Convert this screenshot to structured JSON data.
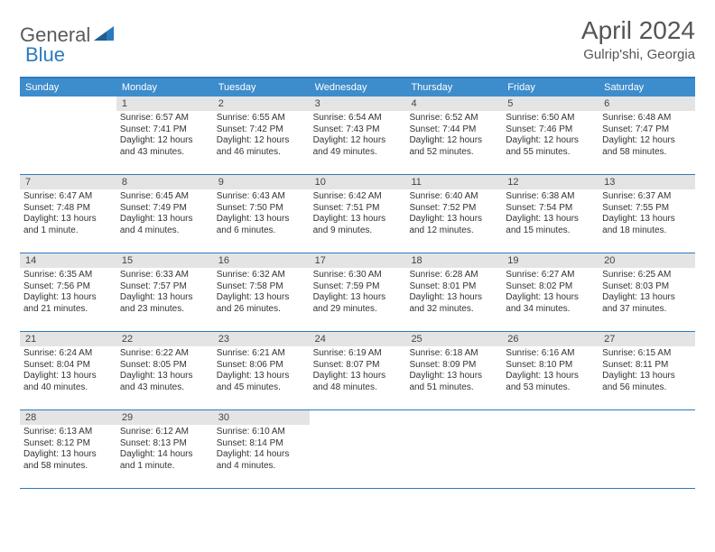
{
  "logo": {
    "gray": "General",
    "blue": "Blue"
  },
  "title": "April 2024",
  "location": "Gulrip'shi, Georgia",
  "colors": {
    "header_bg": "#3d8ccc",
    "header_text": "#ffffff",
    "border": "#2b7bbf",
    "daynum_bg": "#e4e4e4",
    "body_text": "#333333",
    "title_text": "#555555"
  },
  "dayNames": [
    "Sunday",
    "Monday",
    "Tuesday",
    "Wednesday",
    "Thursday",
    "Friday",
    "Saturday"
  ],
  "weeks": [
    [
      {
        "num": "",
        "sunrise": "",
        "sunset": "",
        "daylight": ""
      },
      {
        "num": "1",
        "sunrise": "Sunrise: 6:57 AM",
        "sunset": "Sunset: 7:41 PM",
        "daylight": "Daylight: 12 hours and 43 minutes."
      },
      {
        "num": "2",
        "sunrise": "Sunrise: 6:55 AM",
        "sunset": "Sunset: 7:42 PM",
        "daylight": "Daylight: 12 hours and 46 minutes."
      },
      {
        "num": "3",
        "sunrise": "Sunrise: 6:54 AM",
        "sunset": "Sunset: 7:43 PM",
        "daylight": "Daylight: 12 hours and 49 minutes."
      },
      {
        "num": "4",
        "sunrise": "Sunrise: 6:52 AM",
        "sunset": "Sunset: 7:44 PM",
        "daylight": "Daylight: 12 hours and 52 minutes."
      },
      {
        "num": "5",
        "sunrise": "Sunrise: 6:50 AM",
        "sunset": "Sunset: 7:46 PM",
        "daylight": "Daylight: 12 hours and 55 minutes."
      },
      {
        "num": "6",
        "sunrise": "Sunrise: 6:48 AM",
        "sunset": "Sunset: 7:47 PM",
        "daylight": "Daylight: 12 hours and 58 minutes."
      }
    ],
    [
      {
        "num": "7",
        "sunrise": "Sunrise: 6:47 AM",
        "sunset": "Sunset: 7:48 PM",
        "daylight": "Daylight: 13 hours and 1 minute."
      },
      {
        "num": "8",
        "sunrise": "Sunrise: 6:45 AM",
        "sunset": "Sunset: 7:49 PM",
        "daylight": "Daylight: 13 hours and 4 minutes."
      },
      {
        "num": "9",
        "sunrise": "Sunrise: 6:43 AM",
        "sunset": "Sunset: 7:50 PM",
        "daylight": "Daylight: 13 hours and 6 minutes."
      },
      {
        "num": "10",
        "sunrise": "Sunrise: 6:42 AM",
        "sunset": "Sunset: 7:51 PM",
        "daylight": "Daylight: 13 hours and 9 minutes."
      },
      {
        "num": "11",
        "sunrise": "Sunrise: 6:40 AM",
        "sunset": "Sunset: 7:52 PM",
        "daylight": "Daylight: 13 hours and 12 minutes."
      },
      {
        "num": "12",
        "sunrise": "Sunrise: 6:38 AM",
        "sunset": "Sunset: 7:54 PM",
        "daylight": "Daylight: 13 hours and 15 minutes."
      },
      {
        "num": "13",
        "sunrise": "Sunrise: 6:37 AM",
        "sunset": "Sunset: 7:55 PM",
        "daylight": "Daylight: 13 hours and 18 minutes."
      }
    ],
    [
      {
        "num": "14",
        "sunrise": "Sunrise: 6:35 AM",
        "sunset": "Sunset: 7:56 PM",
        "daylight": "Daylight: 13 hours and 21 minutes."
      },
      {
        "num": "15",
        "sunrise": "Sunrise: 6:33 AM",
        "sunset": "Sunset: 7:57 PM",
        "daylight": "Daylight: 13 hours and 23 minutes."
      },
      {
        "num": "16",
        "sunrise": "Sunrise: 6:32 AM",
        "sunset": "Sunset: 7:58 PM",
        "daylight": "Daylight: 13 hours and 26 minutes."
      },
      {
        "num": "17",
        "sunrise": "Sunrise: 6:30 AM",
        "sunset": "Sunset: 7:59 PM",
        "daylight": "Daylight: 13 hours and 29 minutes."
      },
      {
        "num": "18",
        "sunrise": "Sunrise: 6:28 AM",
        "sunset": "Sunset: 8:01 PM",
        "daylight": "Daylight: 13 hours and 32 minutes."
      },
      {
        "num": "19",
        "sunrise": "Sunrise: 6:27 AM",
        "sunset": "Sunset: 8:02 PM",
        "daylight": "Daylight: 13 hours and 34 minutes."
      },
      {
        "num": "20",
        "sunrise": "Sunrise: 6:25 AM",
        "sunset": "Sunset: 8:03 PM",
        "daylight": "Daylight: 13 hours and 37 minutes."
      }
    ],
    [
      {
        "num": "21",
        "sunrise": "Sunrise: 6:24 AM",
        "sunset": "Sunset: 8:04 PM",
        "daylight": "Daylight: 13 hours and 40 minutes."
      },
      {
        "num": "22",
        "sunrise": "Sunrise: 6:22 AM",
        "sunset": "Sunset: 8:05 PM",
        "daylight": "Daylight: 13 hours and 43 minutes."
      },
      {
        "num": "23",
        "sunrise": "Sunrise: 6:21 AM",
        "sunset": "Sunset: 8:06 PM",
        "daylight": "Daylight: 13 hours and 45 minutes."
      },
      {
        "num": "24",
        "sunrise": "Sunrise: 6:19 AM",
        "sunset": "Sunset: 8:07 PM",
        "daylight": "Daylight: 13 hours and 48 minutes."
      },
      {
        "num": "25",
        "sunrise": "Sunrise: 6:18 AM",
        "sunset": "Sunset: 8:09 PM",
        "daylight": "Daylight: 13 hours and 51 minutes."
      },
      {
        "num": "26",
        "sunrise": "Sunrise: 6:16 AM",
        "sunset": "Sunset: 8:10 PM",
        "daylight": "Daylight: 13 hours and 53 minutes."
      },
      {
        "num": "27",
        "sunrise": "Sunrise: 6:15 AM",
        "sunset": "Sunset: 8:11 PM",
        "daylight": "Daylight: 13 hours and 56 minutes."
      }
    ],
    [
      {
        "num": "28",
        "sunrise": "Sunrise: 6:13 AM",
        "sunset": "Sunset: 8:12 PM",
        "daylight": "Daylight: 13 hours and 58 minutes."
      },
      {
        "num": "29",
        "sunrise": "Sunrise: 6:12 AM",
        "sunset": "Sunset: 8:13 PM",
        "daylight": "Daylight: 14 hours and 1 minute."
      },
      {
        "num": "30",
        "sunrise": "Sunrise: 6:10 AM",
        "sunset": "Sunset: 8:14 PM",
        "daylight": "Daylight: 14 hours and 4 minutes."
      },
      {
        "num": "",
        "sunrise": "",
        "sunset": "",
        "daylight": ""
      },
      {
        "num": "",
        "sunrise": "",
        "sunset": "",
        "daylight": ""
      },
      {
        "num": "",
        "sunrise": "",
        "sunset": "",
        "daylight": ""
      },
      {
        "num": "",
        "sunrise": "",
        "sunset": "",
        "daylight": ""
      }
    ]
  ]
}
